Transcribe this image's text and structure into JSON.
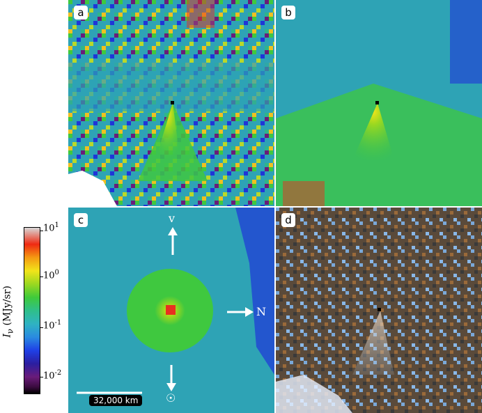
{
  "panels": [
    {
      "id": "a",
      "label": "a"
    },
    {
      "id": "b",
      "label": "b"
    },
    {
      "id": "c",
      "label": "c"
    },
    {
      "id": "d",
      "label": "d"
    }
  ],
  "colorbar": {
    "title": "I_ν (MJy/sr)",
    "title_main": "I",
    "title_sub": "ν",
    "title_unit": "(MJy/sr)",
    "ticks": [
      {
        "base": "10",
        "exp": "1"
      },
      {
        "base": "10",
        "exp": "0"
      },
      {
        "base": "10",
        "exp": "-1"
      },
      {
        "base": "10",
        "exp": "-2"
      }
    ]
  },
  "annotations": {
    "velocity_label": "v",
    "north_label": "N",
    "sun_symbol": "☉",
    "scale_bar_label": "32,000 km"
  },
  "colors": {
    "background_field": "#2f9fb8",
    "coma_green": "#3fc83f",
    "nucleus_red": "#e83020",
    "noise_blue": "#1f35d8"
  }
}
